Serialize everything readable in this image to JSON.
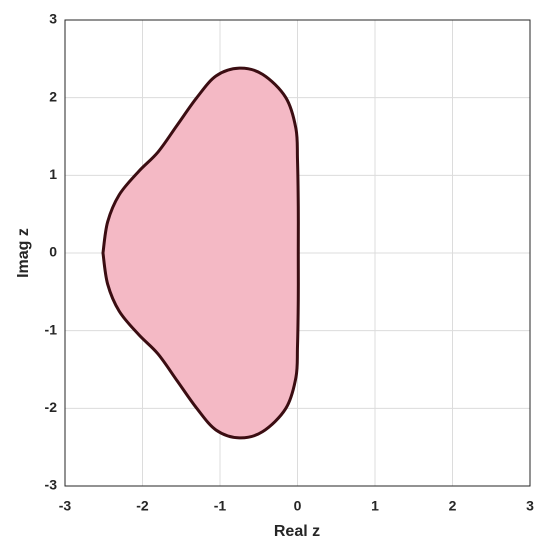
{
  "chart_data": {
    "type": "area",
    "xlabel": "Real z",
    "ylabel": "Imag z",
    "x": [
      -2.51,
      -2.45,
      -2.3,
      -2.05,
      -1.8,
      -1.55,
      -1.3,
      -1.05,
      -0.75,
      -0.45,
      -0.15,
      -0.02,
      0,
      0.01,
      0.01,
      0.01,
      0,
      -0.02,
      -0.15,
      -0.45,
      -0.75,
      -1.05,
      -1.3,
      -1.55,
      -1.8,
      -2.05,
      -2.3,
      -2.45,
      -2.51
    ],
    "values": [
      0,
      0.4,
      0.75,
      1.05,
      1.3,
      1.65,
      2.0,
      2.28,
      2.38,
      2.3,
      2.0,
      1.6,
      1.2,
      0.6,
      0,
      -0.6,
      -1.2,
      -1.6,
      -2.0,
      -2.3,
      -2.38,
      -2.28,
      -2.0,
      -1.65,
      -1.3,
      -1.05,
      -0.75,
      -0.4,
      0
    ],
    "color": "#f4b9c5",
    "line_color": "#3b0d12",
    "xlim": [
      -3,
      3
    ],
    "ylim": [
      -3,
      3
    ],
    "xticks": [
      -3,
      -2,
      -1,
      0,
      1,
      2,
      3
    ],
    "yticks": [
      -3,
      -2,
      -1,
      0,
      1,
      2,
      3
    ],
    "grid": true
  }
}
